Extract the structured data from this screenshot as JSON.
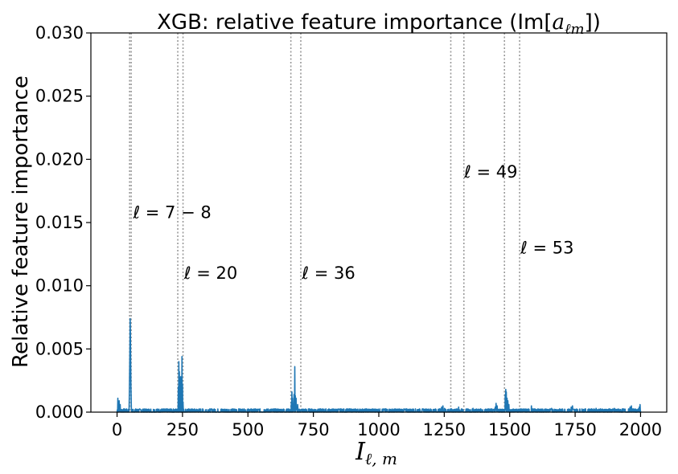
{
  "chart_data": {
    "type": "line",
    "title_prefix": "XGB: relative feature importance (Im[",
    "title_math": "a",
    "title_math_sub": "ℓm",
    "title_suffix": "])",
    "xlabel_main": "I",
    "xlabel_sub": "ℓ, m",
    "ylabel": "Relative feature importance",
    "xlim": [
      -100,
      2100
    ],
    "ylim": [
      0.0,
      0.03
    ],
    "xticks": [
      0,
      250,
      500,
      750,
      1000,
      1250,
      1500,
      1750,
      2000
    ],
    "xtick_labels": [
      "0",
      "250",
      "500",
      "750",
      "1000",
      "1250",
      "1500",
      "1750",
      "2000"
    ],
    "yticks": [
      0.0,
      0.005,
      0.01,
      0.015,
      0.02,
      0.025,
      0.03
    ],
    "ytick_labels": [
      "0.000",
      "0.005",
      "0.010",
      "0.015",
      "0.020",
      "0.025",
      "0.030"
    ],
    "grid": false,
    "series_color": "#1f77b4",
    "vline_color": "#999999",
    "vlines": [
      48,
      54,
      232,
      252,
      664,
      702,
      1275,
      1325,
      1480,
      1538
    ],
    "annotations": [
      {
        "text": "ℓ = 7 − 8",
        "x": 55,
        "y": 0.0158
      },
      {
        "text": "ℓ = 20",
        "x": 250,
        "y": 0.011
      },
      {
        "text": "ℓ = 36",
        "x": 700,
        "y": 0.011
      },
      {
        "text": "ℓ = 49",
        "x": 1320,
        "y": 0.019
      },
      {
        "text": "ℓ = 53",
        "x": 1535,
        "y": 0.013
      }
    ],
    "series": [
      {
        "baseline": 8e-05,
        "peaks": [
          {
            "x": 3,
            "y": 0.0011
          },
          {
            "x": 8,
            "y": 0.0009
          },
          {
            "x": 12,
            "y": 0.0006
          },
          {
            "x": 47,
            "y": 0.0015
          },
          {
            "x": 48,
            "y": 0.0031
          },
          {
            "x": 49,
            "y": 0.005
          },
          {
            "x": 50,
            "y": 0.0074
          },
          {
            "x": 51,
            "y": 0.0062
          },
          {
            "x": 52,
            "y": 0.004
          },
          {
            "x": 53,
            "y": 0.002
          },
          {
            "x": 54,
            "y": 0.001
          },
          {
            "x": 234,
            "y": 0.002
          },
          {
            "x": 236,
            "y": 0.004
          },
          {
            "x": 238,
            "y": 0.0032
          },
          {
            "x": 240,
            "y": 0.0024
          },
          {
            "x": 243,
            "y": 0.0028
          },
          {
            "x": 245,
            "y": 0.0018
          },
          {
            "x": 248,
            "y": 0.0044
          },
          {
            "x": 250,
            "y": 0.0022
          },
          {
            "x": 252,
            "y": 0.0008
          },
          {
            "x": 666,
            "y": 0.0008
          },
          {
            "x": 668,
            "y": 0.0016
          },
          {
            "x": 670,
            "y": 0.0011
          },
          {
            "x": 676,
            "y": 0.0014
          },
          {
            "x": 679,
            "y": 0.0036
          },
          {
            "x": 681,
            "y": 0.0013
          },
          {
            "x": 684,
            "y": 0.0011
          },
          {
            "x": 690,
            "y": 0.0006
          },
          {
            "x": 1240,
            "y": 0.0004
          },
          {
            "x": 1245,
            "y": 0.0005
          },
          {
            "x": 1251,
            "y": 0.0003
          },
          {
            "x": 1305,
            "y": 0.0004
          },
          {
            "x": 1360,
            "y": 0.0003
          },
          {
            "x": 1445,
            "y": 0.0004
          },
          {
            "x": 1448,
            "y": 0.0007
          },
          {
            "x": 1452,
            "y": 0.0005
          },
          {
            "x": 1483,
            "y": 0.0014
          },
          {
            "x": 1485,
            "y": 0.0018
          },
          {
            "x": 1487,
            "y": 0.0016
          },
          {
            "x": 1490,
            "y": 0.0011
          },
          {
            "x": 1493,
            "y": 0.0009
          },
          {
            "x": 1497,
            "y": 0.0006
          },
          {
            "x": 1583,
            "y": 0.0005
          },
          {
            "x": 1660,
            "y": 0.0003
          },
          {
            "x": 1735,
            "y": 0.0004
          },
          {
            "x": 1740,
            "y": 0.0005
          },
          {
            "x": 1830,
            "y": 0.0003
          },
          {
            "x": 1900,
            "y": 0.0003
          },
          {
            "x": 1960,
            "y": 0.0004
          },
          {
            "x": 1965,
            "y": 0.0005
          },
          {
            "x": 1995,
            "y": 0.0004
          },
          {
            "x": 1998,
            "y": 0.0006
          }
        ]
      }
    ]
  }
}
